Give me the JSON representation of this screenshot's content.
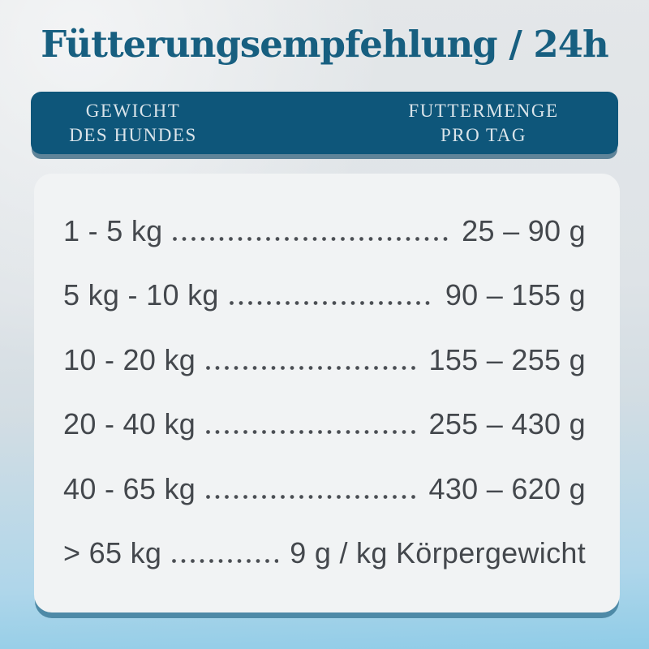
{
  "title": "Fütterungsempfehlung / 24h",
  "colors": {
    "title_color": "#175F80",
    "header_bg": "#0E567A",
    "header_text": "#D9E4EA",
    "header_shadow": "#5F8499",
    "card_bg": "#F1F3F4",
    "card_shadow": "#4E8AA7",
    "row_text": "#44484D",
    "dot_color": "#4A4E53",
    "bg_top": "#E4E7E9",
    "bg_bottom": "#8FCCE7"
  },
  "header": {
    "col_weight_line1": "GEWICHT",
    "col_weight_line2": "DES HUNDES",
    "col_amount_line1": "FUTTERMENGE",
    "col_amount_line2": "PRO TAG"
  },
  "table": {
    "rows": [
      {
        "weight": "1 - 5 kg",
        "amount": "25 – 90 g"
      },
      {
        "weight": "5 kg - 10 kg",
        "amount": "90 – 155 g"
      },
      {
        "weight": "10 - 20 kg",
        "amount": "155 – 255 g"
      },
      {
        "weight": "20 - 40 kg",
        "amount": "255 – 430 g"
      },
      {
        "weight": "40 - 65 kg",
        "amount": "430 – 620 g"
      },
      {
        "weight": "> 65 kg",
        "amount": "9 g / kg Körpergewicht"
      }
    ]
  }
}
